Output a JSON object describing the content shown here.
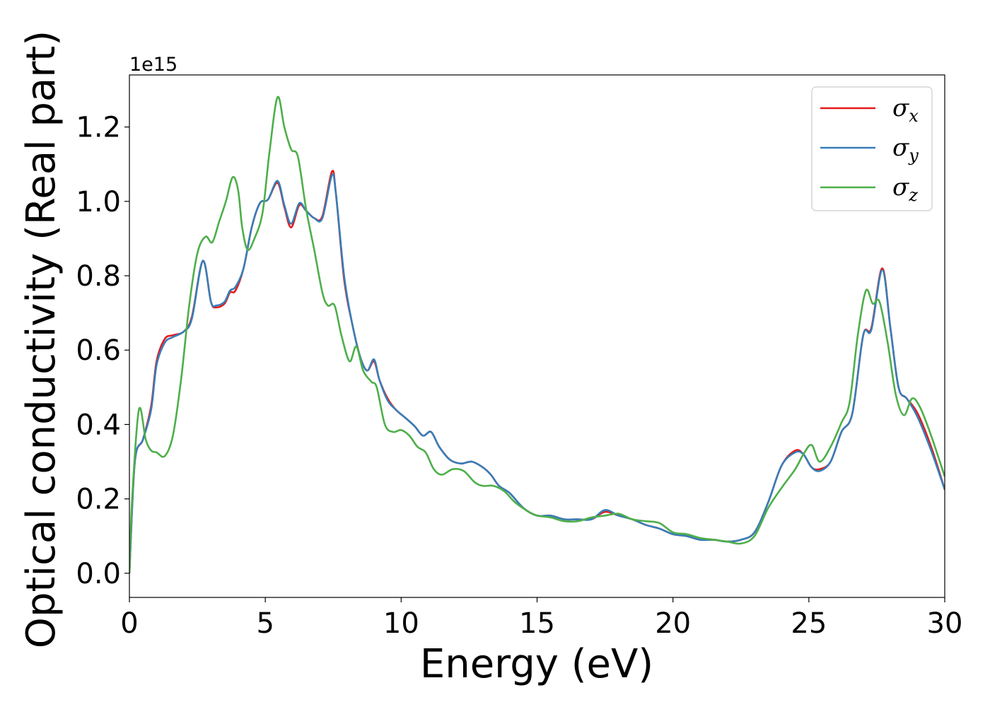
{
  "chart_data": {
    "type": "line",
    "title": "",
    "xlabel": "Energy (eV)",
    "ylabel": "Optical conductivity (Real part)",
    "y_offset_label": "1e15",
    "xlim": [
      0,
      30
    ],
    "ylim": [
      -0.065,
      1.34
    ],
    "x_ticks": [
      0,
      5,
      10,
      15,
      20,
      25,
      30
    ],
    "x_tick_labels": [
      "0",
      "5",
      "10",
      "15",
      "20",
      "25",
      "30"
    ],
    "y_ticks": [
      0.0,
      0.2,
      0.4,
      0.6,
      0.8,
      1.0,
      1.2
    ],
    "y_tick_labels": [
      "0.0",
      "0.2",
      "0.4",
      "0.6",
      "0.8",
      "1.0",
      "1.2"
    ],
    "grid": false,
    "legend_position": "top-right",
    "series": [
      {
        "name": "σx",
        "symbol": "σ",
        "subscript": "x",
        "color": "#e41a1c",
        "x": [
          0,
          0.2,
          0.5,
          0.8,
          1.0,
          1.3,
          1.6,
          2.0,
          2.3,
          2.7,
          3.0,
          3.2,
          3.5,
          3.7,
          3.9,
          4.2,
          4.5,
          4.8,
          5.1,
          5.45,
          5.7,
          5.95,
          6.25,
          6.5,
          6.8,
          7.1,
          7.45,
          7.6,
          7.9,
          8.2,
          8.5,
          8.75,
          9.0,
          9.2,
          9.5,
          9.8,
          10.2,
          10.5,
          10.8,
          11.1,
          11.4,
          11.8,
          12.2,
          12.6,
          13.0,
          13.3,
          13.6,
          14.0,
          14.5,
          15.0,
          15.5,
          16.0,
          16.5,
          17.0,
          17.5,
          18.0,
          18.5,
          19.0,
          19.5,
          20.0,
          20.5,
          21.0,
          21.5,
          22.0,
          22.5,
          23.0,
          23.5,
          24.0,
          24.5,
          24.8,
          25.1,
          25.4,
          25.8,
          26.2,
          26.6,
          27.0,
          27.3,
          27.7,
          28.0,
          28.3,
          28.6,
          29.0,
          29.5,
          30.0
        ],
        "values": [
          0.0,
          0.3,
          0.36,
          0.45,
          0.57,
          0.63,
          0.64,
          0.65,
          0.69,
          0.84,
          0.73,
          0.715,
          0.725,
          0.755,
          0.76,
          0.82,
          0.93,
          0.995,
          1.005,
          1.05,
          0.985,
          0.93,
          0.99,
          0.975,
          0.955,
          0.96,
          1.08,
          1.02,
          0.79,
          0.67,
          0.58,
          0.545,
          0.57,
          0.52,
          0.47,
          0.44,
          0.415,
          0.395,
          0.37,
          0.38,
          0.34,
          0.305,
          0.295,
          0.3,
          0.285,
          0.265,
          0.235,
          0.215,
          0.175,
          0.155,
          0.155,
          0.145,
          0.145,
          0.145,
          0.165,
          0.155,
          0.145,
          0.13,
          0.12,
          0.105,
          0.1,
          0.09,
          0.09,
          0.085,
          0.09,
          0.11,
          0.19,
          0.29,
          0.33,
          0.32,
          0.285,
          0.28,
          0.3,
          0.38,
          0.43,
          0.64,
          0.66,
          0.82,
          0.66,
          0.5,
          0.47,
          0.43,
          0.34,
          0.225
        ]
      },
      {
        "name": "σy",
        "symbol": "σ",
        "subscript": "y",
        "color": "#377eb8",
        "x": [
          0,
          0.2,
          0.5,
          0.8,
          1.0,
          1.3,
          1.6,
          2.0,
          2.3,
          2.7,
          3.0,
          3.2,
          3.5,
          3.7,
          3.9,
          4.2,
          4.5,
          4.8,
          5.1,
          5.45,
          5.7,
          5.95,
          6.25,
          6.5,
          6.8,
          7.1,
          7.45,
          7.6,
          7.9,
          8.2,
          8.5,
          8.75,
          9.0,
          9.2,
          9.5,
          9.8,
          10.2,
          10.5,
          10.8,
          11.1,
          11.4,
          11.8,
          12.2,
          12.6,
          13.0,
          13.3,
          13.6,
          14.0,
          14.5,
          15.0,
          15.5,
          16.0,
          16.5,
          17.0,
          17.5,
          18.0,
          18.5,
          19.0,
          19.5,
          20.0,
          20.5,
          21.0,
          21.5,
          22.0,
          22.5,
          23.0,
          23.5,
          24.0,
          24.5,
          24.8,
          25.1,
          25.4,
          25.8,
          26.2,
          26.6,
          27.0,
          27.3,
          27.7,
          28.0,
          28.3,
          28.6,
          29.0,
          29.5,
          30.0
        ],
        "values": [
          0.0,
          0.3,
          0.36,
          0.44,
          0.56,
          0.62,
          0.635,
          0.65,
          0.685,
          0.84,
          0.73,
          0.72,
          0.73,
          0.76,
          0.77,
          0.82,
          0.93,
          0.995,
          1.005,
          1.055,
          0.99,
          0.94,
          0.995,
          0.975,
          0.955,
          0.955,
          1.07,
          1.02,
          0.8,
          0.67,
          0.58,
          0.545,
          0.575,
          0.52,
          0.465,
          0.44,
          0.415,
          0.395,
          0.37,
          0.38,
          0.34,
          0.305,
          0.295,
          0.3,
          0.285,
          0.265,
          0.235,
          0.215,
          0.175,
          0.155,
          0.155,
          0.145,
          0.145,
          0.145,
          0.17,
          0.155,
          0.145,
          0.13,
          0.12,
          0.105,
          0.1,
          0.09,
          0.09,
          0.085,
          0.09,
          0.11,
          0.19,
          0.29,
          0.325,
          0.32,
          0.285,
          0.275,
          0.3,
          0.38,
          0.43,
          0.64,
          0.655,
          0.815,
          0.66,
          0.5,
          0.47,
          0.42,
          0.33,
          0.225
        ]
      },
      {
        "name": "σz",
        "symbol": "σ",
        "subscript": "z",
        "color": "#4daf4a",
        "x": [
          0,
          0.1,
          0.35,
          0.6,
          0.8,
          1.0,
          1.3,
          1.6,
          1.9,
          2.2,
          2.5,
          2.8,
          3.05,
          3.3,
          3.55,
          3.8,
          4.0,
          4.15,
          4.35,
          4.6,
          4.9,
          5.15,
          5.45,
          5.7,
          5.95,
          6.2,
          6.5,
          6.8,
          7.1,
          7.3,
          7.55,
          7.8,
          8.1,
          8.35,
          8.6,
          8.9,
          9.1,
          9.4,
          9.7,
          10.0,
          10.3,
          10.6,
          10.9,
          11.2,
          11.5,
          11.9,
          12.3,
          12.7,
          13.0,
          13.4,
          13.8,
          14.2,
          14.7,
          15.0,
          15.5,
          16.0,
          16.5,
          17.0,
          17.5,
          18.0,
          18.5,
          19.0,
          19.5,
          20.0,
          20.5,
          21.0,
          21.5,
          22.0,
          22.5,
          23.0,
          23.5,
          24.0,
          24.5,
          24.8,
          25.1,
          25.4,
          25.8,
          26.2,
          26.5,
          26.8,
          27.1,
          27.35,
          27.6,
          27.9,
          28.2,
          28.5,
          28.8,
          29.1,
          29.5,
          30.0
        ],
        "values": [
          0.0,
          0.2,
          0.44,
          0.36,
          0.33,
          0.325,
          0.315,
          0.37,
          0.52,
          0.72,
          0.86,
          0.905,
          0.89,
          0.945,
          1.0,
          1.065,
          1.03,
          0.93,
          0.87,
          0.9,
          0.97,
          1.13,
          1.28,
          1.2,
          1.14,
          1.12,
          0.98,
          0.87,
          0.755,
          0.72,
          0.72,
          0.64,
          0.57,
          0.61,
          0.545,
          0.515,
          0.5,
          0.4,
          0.38,
          0.385,
          0.37,
          0.34,
          0.325,
          0.28,
          0.265,
          0.28,
          0.275,
          0.245,
          0.235,
          0.235,
          0.22,
          0.19,
          0.165,
          0.155,
          0.15,
          0.14,
          0.14,
          0.15,
          0.155,
          0.16,
          0.145,
          0.14,
          0.135,
          0.11,
          0.105,
          0.095,
          0.09,
          0.085,
          0.08,
          0.1,
          0.175,
          0.23,
          0.28,
          0.32,
          0.345,
          0.3,
          0.34,
          0.405,
          0.46,
          0.64,
          0.76,
          0.725,
          0.73,
          0.62,
          0.48,
          0.425,
          0.47,
          0.445,
          0.37,
          0.26
        ]
      }
    ]
  }
}
